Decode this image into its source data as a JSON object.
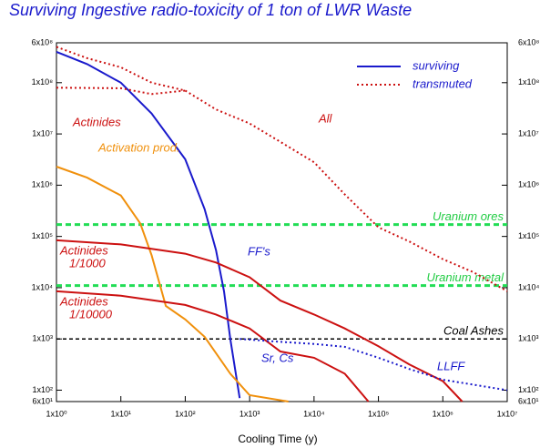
{
  "chart_data": {
    "type": "line",
    "title": "Surviving Ingestive radio-toxicity of 1 ton of LWR Waste",
    "xlabel": "Cooling Time (y)",
    "xscale": "log",
    "yscale": "log",
    "xlim": [
      1,
      10000000
    ],
    "ylim": [
      60,
      600000000
    ],
    "xticks": [
      {
        "value": 1,
        "label": "1x10⁰"
      },
      {
        "value": 10,
        "label": "1x10¹"
      },
      {
        "value": 100,
        "label": "1x10²"
      },
      {
        "value": 1000,
        "label": "1x10³"
      },
      {
        "value": 10000,
        "label": "1x10⁴"
      },
      {
        "value": 100000,
        "label": "1x10⁵"
      },
      {
        "value": 1000000,
        "label": "1x10⁶"
      },
      {
        "value": 10000000,
        "label": "1x10⁷"
      }
    ],
    "yticks": [
      {
        "value": 60,
        "label": "6x10¹"
      },
      {
        "value": 100,
        "label": "1x10²"
      },
      {
        "value": 1000,
        "label": "1x10³"
      },
      {
        "value": 10000,
        "label": "1x10⁴"
      },
      {
        "value": 100000,
        "label": "1x10⁵"
      },
      {
        "value": 1000000,
        "label": "1x10⁶"
      },
      {
        "value": 10000000,
        "label": "1x10⁷"
      },
      {
        "value": 100000000,
        "label": "1x10⁸"
      },
      {
        "value": 600000000,
        "label": "6x10⁸"
      }
    ],
    "legend": [
      {
        "name": "surviving",
        "color": "#1a1acc",
        "dash": "solid"
      },
      {
        "name": "transmuted",
        "color": "#cc1111",
        "dash": "dotted"
      }
    ],
    "series": [
      {
        "color": "#1a1acc",
        "dash": "solid",
        "x": [
          1,
          3,
          10,
          30,
          100,
          200,
          300,
          400,
          500,
          700
        ],
        "values": [
          400000000,
          230000000,
          100000000,
          25000000,
          3200000,
          340000,
          54000,
          8500,
          1000,
          70
        ]
      },
      {
        "color": "#cc1111",
        "dash": "dotted",
        "x": [
          1,
          3,
          10,
          30,
          100,
          300,
          1000,
          3000,
          10000,
          30000,
          100000,
          300000,
          1000000,
          3000000,
          10000000
        ],
        "values": [
          500000000,
          300000000,
          200000000,
          100000000,
          70000000,
          30000000,
          16000000,
          7000000,
          2800000,
          660000,
          150000,
          80000,
          36000,
          20000,
          8500
        ]
      },
      {
        "color": "#cc1111",
        "dash": "dotted",
        "x": [
          1,
          10,
          30,
          100
        ],
        "values": [
          80000000,
          78000000,
          60000000,
          70000000
        ]
      },
      {
        "color": "#f0900c",
        "dash": "solid",
        "x": [
          1,
          3,
          10,
          20,
          30,
          50,
          100,
          200,
          500,
          1000,
          4000
        ],
        "values": [
          2300000,
          1400000,
          630000,
          180000,
          43000,
          4400,
          2400,
          1100,
          210,
          80,
          60
        ]
      },
      {
        "color": "#cc1111",
        "dash": "solid",
        "x": [
          1,
          10,
          100,
          300,
          1000,
          3000,
          10000,
          30000,
          100000,
          300000,
          1000000,
          2000000
        ],
        "values": [
          84000,
          70000,
          46000,
          31000,
          16000,
          5600,
          3000,
          1600,
          720,
          320,
          150,
          60
        ]
      },
      {
        "color": "#cc1111",
        "dash": "solid",
        "x": [
          1,
          10,
          100,
          300,
          1000,
          3000,
          10000,
          30000,
          70000
        ],
        "values": [
          8500,
          7000,
          4600,
          3000,
          1600,
          570,
          430,
          210,
          60
        ]
      },
      {
        "color": "#1a1acc",
        "dash": "dotted",
        "x": [
          700,
          3000,
          10000,
          30000,
          100000,
          300000,
          1000000,
          10000000
        ],
        "values": [
          1000,
          880,
          800,
          700,
          430,
          260,
          160,
          100
        ]
      }
    ],
    "reference_lines": [
      {
        "label": "Uranium ores",
        "value": 170000,
        "color": "#22dd55"
      },
      {
        "label": "Uranium metal",
        "value": 11000,
        "color": "#22dd55"
      },
      {
        "label": "Coal Ashes",
        "value": 1000,
        "color": "#000000"
      }
    ],
    "annotations": [
      {
        "lines": [
          "Actinides"
        ],
        "color": "#cc1111"
      },
      {
        "lines": [
          "All"
        ],
        "color": "#cc1111"
      },
      {
        "lines": [
          "Activation prod."
        ],
        "color": "#f0900c"
      },
      {
        "lines": [
          "FF's"
        ],
        "color": "#1a1acc"
      },
      {
        "lines": [
          "Sr, Cs"
        ],
        "color": "#1a1acc"
      },
      {
        "lines": [
          "Actinides",
          "1/1000"
        ],
        "color": "#cc1111"
      },
      {
        "lines": [
          "Actinides",
          "1/10000"
        ],
        "color": "#cc1111"
      },
      {
        "lines": [
          "LLFF"
        ],
        "color": "#1a1acc"
      }
    ]
  }
}
